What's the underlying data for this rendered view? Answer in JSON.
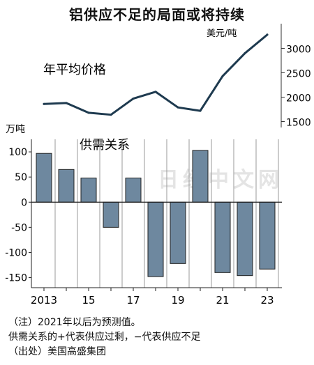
{
  "title": "铝供应不足的局面或将持续",
  "watermark": "日经中文网",
  "notes": [
    "（注）2021年以后为预测值。",
    "供需关系的+代表供应过剩，−代表供应不足",
    "（出处）美国高盛集团"
  ],
  "chart_data": [
    {
      "type": "line",
      "title": "年平均价格",
      "unit": "美元/吨",
      "x": [
        2013,
        2014,
        2015,
        2016,
        2017,
        2018,
        2019,
        2020,
        2021,
        2022,
        2023
      ],
      "series": [
        {
          "values": [
            1860,
            1880,
            1680,
            1640,
            1970,
            2110,
            1790,
            1720,
            2430,
            2900,
            3280
          ]
        }
      ],
      "yticks": [
        1500,
        2000,
        2500,
        3000
      ],
      "ylim": [
        1450,
        3420
      ],
      "axis_side": "right",
      "color": "#1e3a4f"
    },
    {
      "type": "bar",
      "title": "供需关系",
      "unit": "万吨",
      "categories": [
        2013,
        2014,
        2015,
        2016,
        2017,
        2018,
        2019,
        2020,
        2021,
        2022,
        2023
      ],
      "values": [
        97,
        65,
        48,
        -50,
        48,
        -148,
        -122,
        103,
        -140,
        -146,
        -133
      ],
      "xticklabels": [
        "2013",
        "",
        "15",
        "",
        "17",
        "",
        "19",
        "",
        "21",
        "",
        "23"
      ],
      "yticks": [
        100,
        50,
        0,
        -50,
        -100,
        -150
      ],
      "yticklabels": [
        "100",
        "50",
        "0",
        "-50",
        "-100",
        "-150"
      ],
      "ylim": [
        -170,
        125
      ],
      "axis_side": "left",
      "grid": "vertical",
      "color": "#6e889f"
    }
  ]
}
